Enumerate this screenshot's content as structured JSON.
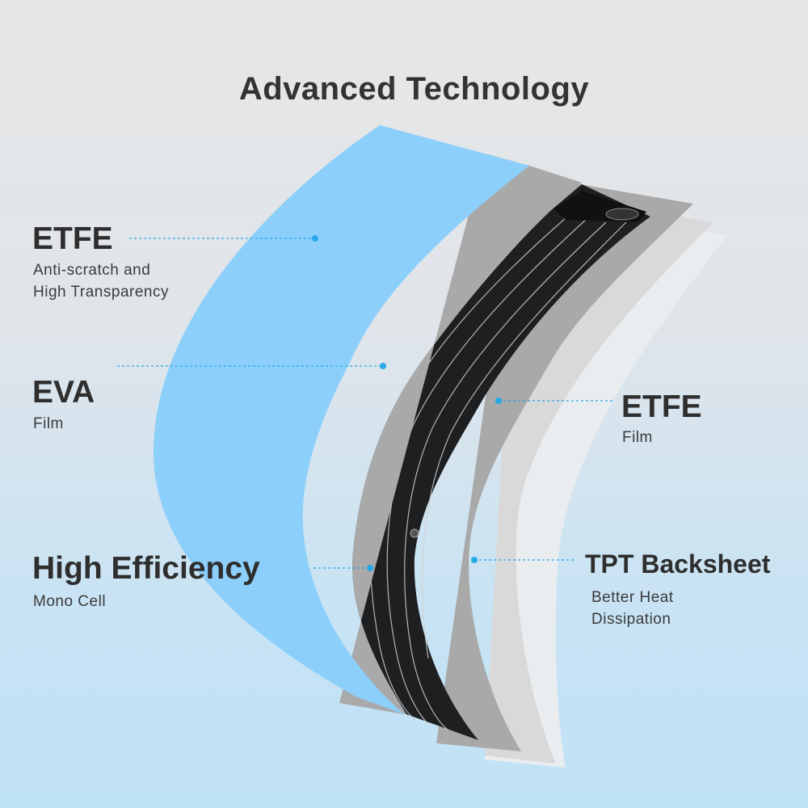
{
  "title": "Advanced Technology",
  "layers": [
    {
      "name": "ETFE",
      "description": [
        "Anti-scratch and",
        "High Transparency"
      ]
    },
    {
      "name": "EVA",
      "description": [
        "Film"
      ]
    },
    {
      "name": "High Efficiency",
      "description": [
        "Mono Cell"
      ]
    },
    {
      "name": "ETFE",
      "description": [
        "Film"
      ]
    },
    {
      "name": "TPT Backsheet",
      "description": [
        "Better Heat",
        "Dissipation"
      ]
    }
  ],
  "colors": {
    "etfe_front": "#8ccffb",
    "eva": "#a9a9a9",
    "cell": "#1e1f21",
    "etfe_back": "#a9a9a9",
    "tpt": "#d9d9d9",
    "leader": "#29a8e8"
  }
}
